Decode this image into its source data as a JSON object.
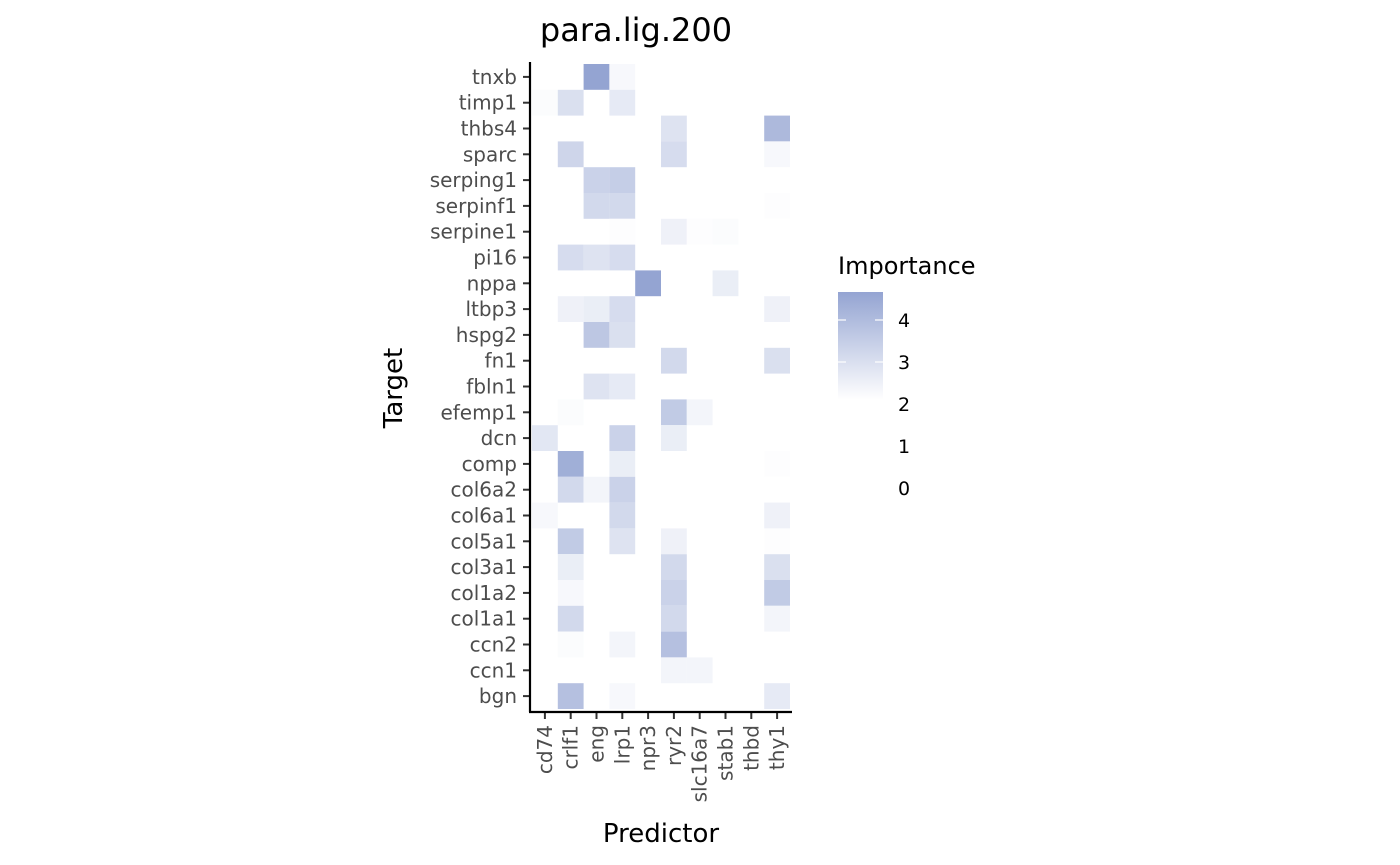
{
  "chart_data": {
    "type": "heatmap",
    "title": "para.lig.200",
    "xlabel": "Predictor",
    "ylabel": "Target",
    "x_categories": [
      "cd74",
      "crlf1",
      "eng",
      "lrp1",
      "npr3",
      "ryr2",
      "slc16a7",
      "stab1",
      "thbd",
      "thy1"
    ],
    "y_categories": [
      "tnxb",
      "timp1",
      "thbs4",
      "sparc",
      "serping1",
      "serpinf1",
      "serpine1",
      "pi16",
      "nppa",
      "ltbp3",
      "hspg2",
      "fn1",
      "fbln1",
      "efemp1",
      "dcn",
      "comp",
      "col6a2",
      "col6a1",
      "col5a1",
      "col3a1",
      "col1a2",
      "col1a1",
      "ccn2",
      "ccn1",
      "bgn"
    ],
    "cells": [
      {
        "x": "eng",
        "y": "tnxb",
        "value": 4.6
      },
      {
        "x": "lrp1",
        "y": "tnxb",
        "value": 2.2
      },
      {
        "x": "cd74",
        "y": "timp1",
        "value": 2.1
      },
      {
        "x": "crlf1",
        "y": "timp1",
        "value": 2.9
      },
      {
        "x": "lrp1",
        "y": "timp1",
        "value": 2.6
      },
      {
        "x": "ryr2",
        "y": "thbs4",
        "value": 2.8
      },
      {
        "x": "thy1",
        "y": "thbs4",
        "value": 4.0
      },
      {
        "x": "crlf1",
        "y": "sparc",
        "value": 3.2
      },
      {
        "x": "ryr2",
        "y": "sparc",
        "value": 3.0
      },
      {
        "x": "thy1",
        "y": "sparc",
        "value": 2.2
      },
      {
        "x": "eng",
        "y": "serping1",
        "value": 3.3
      },
      {
        "x": "lrp1",
        "y": "serping1",
        "value": 3.4
      },
      {
        "x": "eng",
        "y": "serpinf1",
        "value": 3.1
      },
      {
        "x": "lrp1",
        "y": "serpinf1",
        "value": 3.1
      },
      {
        "x": "thy1",
        "y": "serpinf1",
        "value": 2.05
      },
      {
        "x": "lrp1",
        "y": "serpine1",
        "value": 2.05
      },
      {
        "x": "ryr2",
        "y": "serpine1",
        "value": 2.4
      },
      {
        "x": "slc16a7",
        "y": "serpine1",
        "value": 2.05
      },
      {
        "x": "stab1",
        "y": "serpine1",
        "value": 2.1
      },
      {
        "x": "crlf1",
        "y": "pi16",
        "value": 3.0
      },
      {
        "x": "eng",
        "y": "pi16",
        "value": 2.8
      },
      {
        "x": "lrp1",
        "y": "pi16",
        "value": 3.0
      },
      {
        "x": "npr3",
        "y": "nppa",
        "value": 4.6
      },
      {
        "x": "stab1",
        "y": "nppa",
        "value": 2.5
      },
      {
        "x": "crlf1",
        "y": "ltbp3",
        "value": 2.4
      },
      {
        "x": "eng",
        "y": "ltbp3",
        "value": 2.5
      },
      {
        "x": "lrp1",
        "y": "ltbp3",
        "value": 3.0
      },
      {
        "x": "thy1",
        "y": "ltbp3",
        "value": 2.4
      },
      {
        "x": "eng",
        "y": "hspg2",
        "value": 3.6
      },
      {
        "x": "lrp1",
        "y": "hspg2",
        "value": 2.9
      },
      {
        "x": "ryr2",
        "y": "fn1",
        "value": 3.1
      },
      {
        "x": "thy1",
        "y": "fn1",
        "value": 2.9
      },
      {
        "x": "eng",
        "y": "fbln1",
        "value": 2.8
      },
      {
        "x": "lrp1",
        "y": "fbln1",
        "value": 2.6
      },
      {
        "x": "crlf1",
        "y": "efemp1",
        "value": 2.1
      },
      {
        "x": "ryr2",
        "y": "efemp1",
        "value": 3.5
      },
      {
        "x": "slc16a7",
        "y": "efemp1",
        "value": 2.3
      },
      {
        "x": "cd74",
        "y": "dcn",
        "value": 2.7
      },
      {
        "x": "lrp1",
        "y": "dcn",
        "value": 3.3
      },
      {
        "x": "ryr2",
        "y": "dcn",
        "value": 2.5
      },
      {
        "x": "crlf1",
        "y": "comp",
        "value": 4.3
      },
      {
        "x": "lrp1",
        "y": "comp",
        "value": 2.5
      },
      {
        "x": "thy1",
        "y": "comp",
        "value": 2.05
      },
      {
        "x": "crlf1",
        "y": "col6a2",
        "value": 3.1
      },
      {
        "x": "eng",
        "y": "col6a2",
        "value": 2.3
      },
      {
        "x": "lrp1",
        "y": "col6a2",
        "value": 3.3
      },
      {
        "x": "cd74",
        "y": "col6a1",
        "value": 2.2
      },
      {
        "x": "lrp1",
        "y": "col6a1",
        "value": 3.1
      },
      {
        "x": "thy1",
        "y": "col6a1",
        "value": 2.4
      },
      {
        "x": "crlf1",
        "y": "col5a1",
        "value": 3.5
      },
      {
        "x": "lrp1",
        "y": "col5a1",
        "value": 2.8
      },
      {
        "x": "ryr2",
        "y": "col5a1",
        "value": 2.4
      },
      {
        "x": "thy1",
        "y": "col5a1",
        "value": 2.05
      },
      {
        "x": "crlf1",
        "y": "col3a1",
        "value": 2.5
      },
      {
        "x": "ryr2",
        "y": "col3a1",
        "value": 3.1
      },
      {
        "x": "thy1",
        "y": "col3a1",
        "value": 2.9
      },
      {
        "x": "crlf1",
        "y": "col1a2",
        "value": 2.2
      },
      {
        "x": "ryr2",
        "y": "col1a2",
        "value": 3.3
      },
      {
        "x": "thy1",
        "y": "col1a2",
        "value": 3.5
      },
      {
        "x": "crlf1",
        "y": "col1a1",
        "value": 3.1
      },
      {
        "x": "ryr2",
        "y": "col1a1",
        "value": 3.1
      },
      {
        "x": "thy1",
        "y": "col1a1",
        "value": 2.3
      },
      {
        "x": "crlf1",
        "y": "ccn2",
        "value": 2.1
      },
      {
        "x": "lrp1",
        "y": "ccn2",
        "value": 2.3
      },
      {
        "x": "ryr2",
        "y": "ccn2",
        "value": 3.8
      },
      {
        "x": "ryr2",
        "y": "ccn1",
        "value": 2.3
      },
      {
        "x": "slc16a7",
        "y": "ccn1",
        "value": 2.3
      },
      {
        "x": "crlf1",
        "y": "bgn",
        "value": 3.8
      },
      {
        "x": "lrp1",
        "y": "bgn",
        "value": 2.2
      },
      {
        "x": "thy1",
        "y": "bgn",
        "value": 2.6
      }
    ],
    "color_scale": {
      "low": "#ffffff",
      "high": "#94a4d2",
      "domain": [
        2,
        4.6
      ]
    },
    "legend": {
      "title": "Importance",
      "ticks": [
        "4",
        "3",
        "2",
        "1",
        "0"
      ],
      "position": "right"
    },
    "grid": false
  }
}
